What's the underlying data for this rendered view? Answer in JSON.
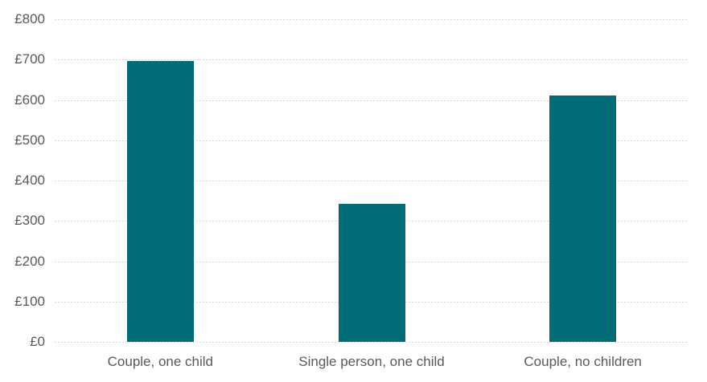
{
  "chart_data": {
    "type": "bar",
    "title": "",
    "categories": [
      "Couple, one child",
      "Single person, one child",
      "Couple, no children"
    ],
    "values": [
      697,
      342,
      610
    ],
    "xlabel": "",
    "ylabel": "",
    "ylim": [
      0,
      800
    ],
    "ytick_step": 100,
    "ytick_labels": [
      "£0",
      "£100",
      "£200",
      "£300",
      "£400",
      "£500",
      "£600",
      "£700",
      "£800"
    ],
    "currency_prefix": "£",
    "grid": "horizontal-dashed",
    "legend_position": "none",
    "colors": {
      "bar": "#036D77",
      "gridline": "#D9D9D9",
      "axis_text": "#595959",
      "background": "#FFFFFF"
    }
  }
}
